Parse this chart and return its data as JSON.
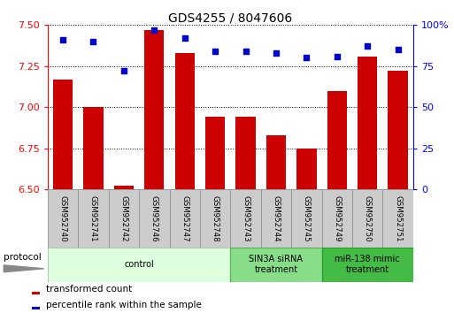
{
  "title": "GDS4255 / 8047606",
  "samples": [
    "GSM952740",
    "GSM952741",
    "GSM952742",
    "GSM952746",
    "GSM952747",
    "GSM952748",
    "GSM952743",
    "GSM952744",
    "GSM952745",
    "GSM952749",
    "GSM952750",
    "GSM952751"
  ],
  "transformed_count": [
    7.17,
    7.0,
    6.52,
    7.47,
    7.33,
    6.94,
    6.94,
    6.83,
    6.75,
    7.1,
    7.31,
    7.22
  ],
  "percentile_rank": [
    91,
    90,
    72,
    97,
    92,
    84,
    84,
    83,
    80,
    81,
    87,
    85
  ],
  "ylim_left": [
    6.5,
    7.5
  ],
  "ylim_right": [
    0,
    100
  ],
  "yticks_left": [
    6.5,
    6.75,
    7.0,
    7.25,
    7.5
  ],
  "yticks_right": [
    0,
    25,
    50,
    75,
    100
  ],
  "ytick_right_labels": [
    "0",
    "25",
    "50",
    "75",
    "100%"
  ],
  "bar_color": "#cc0000",
  "dot_color": "#0000cc",
  "bar_bottom": 6.5,
  "groups": [
    {
      "label": "control",
      "start": 0,
      "end": 5,
      "color": "#ddffdd",
      "edge_color": "#aaccaa"
    },
    {
      "label": "SIN3A siRNA\ntreatment",
      "start": 6,
      "end": 8,
      "color": "#88dd88",
      "edge_color": "#55aa55"
    },
    {
      "label": "miR-138 mimic\ntreatment",
      "start": 9,
      "end": 11,
      "color": "#44bb44",
      "edge_color": "#229922"
    }
  ],
  "legend_labels": [
    "transformed count",
    "percentile rank within the sample"
  ],
  "legend_colors": [
    "#cc0000",
    "#0000cc"
  ],
  "protocol_label": "protocol",
  "background_color": "#ffffff",
  "grid_color": "#555555",
  "label_box_color": "#cccccc",
  "label_box_edge": "#999999"
}
